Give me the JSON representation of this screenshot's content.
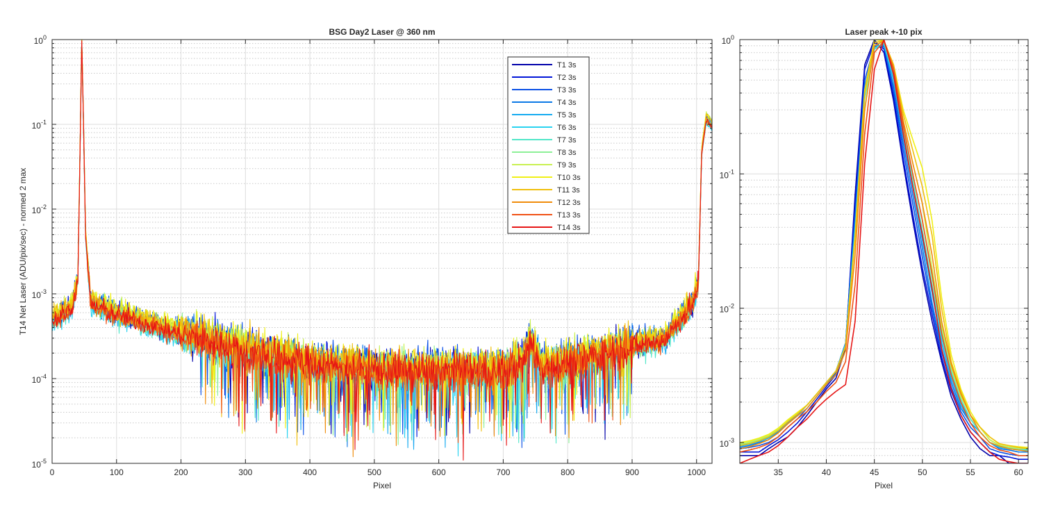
{
  "chart_data": [
    {
      "type": "line",
      "title": "BSG  Day2 Laser @ 360 nm",
      "xlabel": "Pixel",
      "ylabel": "T14 Net Laser (ADU/pix/sec) - normed 2 max",
      "xlim": [
        0,
        1024
      ],
      "ylim": [
        1e-05,
        1
      ],
      "yscale": "log",
      "grid": true,
      "minor_grid": true,
      "legend_position": "top-right (inside)",
      "x_ticks": [
        "0",
        "100",
        "200",
        "300",
        "400",
        "500",
        "600",
        "700",
        "800",
        "900",
        "1000"
      ],
      "y_ticks": [
        {
          "base": "10",
          "exp": "-5"
        },
        {
          "base": "10",
          "exp": "-4"
        },
        {
          "base": "10",
          "exp": "-3"
        },
        {
          "base": "10",
          "exp": "-2"
        },
        {
          "base": "10",
          "exp": "-1"
        },
        {
          "base": "10",
          "exp": "0"
        }
      ],
      "series_names": [
        "T1 3s",
        "T2 3s",
        "T3 3s",
        "T4 3s",
        "T5 3s",
        "T6 3s",
        "T7 3s",
        "T8 3s",
        "T9 3s",
        "T10 3s",
        "T11 3s",
        "T12 3s",
        "T13 3s",
        "T14 3s"
      ],
      "series_colors": [
        "#0000AA",
        "#0014D8",
        "#0A50E6",
        "#0A78E6",
        "#14AAF0",
        "#28D2F0",
        "#50E6C8",
        "#8CF096",
        "#C8F050",
        "#F0F014",
        "#F0BE0A",
        "#F08C0A",
        "#F05014",
        "#E61414"
      ],
      "profile": {
        "anchors_x": [
          0,
          30,
          40,
          44,
          46,
          48,
          52,
          60,
          100,
          200,
          300,
          400,
          500,
          600,
          700,
          730,
          742,
          760,
          800,
          900,
          950,
          995,
          1003,
          1008,
          1015,
          1024
        ],
        "anchors_y": [
          0.0005,
          0.0007,
          0.0015,
          0.1,
          1.0,
          0.2,
          0.005,
          0.0008,
          0.0006,
          0.00035,
          0.00022,
          0.00016,
          0.00013,
          0.00013,
          0.00013,
          0.00016,
          0.00028,
          0.00014,
          0.00016,
          0.00025,
          0.0003,
          0.0008,
          0.0015,
          0.05,
          0.12,
          0.1
        ]
      }
    },
    {
      "type": "line",
      "title": "Laser peak +-10 pix",
      "xlabel": "Pixel",
      "xlim": [
        31,
        61
      ],
      "ylim": [
        0.0007,
        1
      ],
      "yscale": "log",
      "grid": true,
      "minor_grid": true,
      "x_ticks": [
        "35",
        "40",
        "45",
        "50",
        "55",
        "60"
      ],
      "y_ticks": [
        {
          "base": "10",
          "exp": "-3"
        },
        {
          "base": "10",
          "exp": "-2"
        },
        {
          "base": "10",
          "exp": "-1"
        },
        {
          "base": "10",
          "exp": "0"
        }
      ],
      "x": [
        31,
        32,
        33,
        34,
        35,
        36,
        37,
        38,
        39,
        40,
        41,
        42,
        43,
        44,
        45,
        46,
        47,
        48,
        49,
        50,
        51,
        52,
        53,
        54,
        55,
        56,
        57,
        58,
        59,
        60,
        61
      ],
      "series": [
        {
          "values": [
            0.0008,
            0.0008,
            0.0008,
            0.0009,
            0.001,
            0.0011,
            0.0013,
            0.0016,
            0.002,
            0.0025,
            0.003,
            0.005,
            0.07,
            0.65,
            1.0,
            0.8,
            0.35,
            0.12,
            0.045,
            0.018,
            0.008,
            0.004,
            0.0022,
            0.0015,
            0.0011,
            0.0009,
            0.0008,
            0.0008,
            0.0007,
            0.0007,
            0.0007
          ]
        },
        {
          "values": [
            0.00085,
            0.00085,
            0.00085,
            0.00095,
            0.00105,
            0.0012,
            0.0014,
            0.0017,
            0.0021,
            0.0026,
            0.0032,
            0.0053,
            0.06,
            0.6,
            0.95,
            0.85,
            0.38,
            0.13,
            0.05,
            0.02,
            0.009,
            0.0043,
            0.0024,
            0.0016,
            0.0012,
            0.001,
            0.00085,
            0.0008,
            0.00078,
            0.00075,
            0.00075
          ]
        },
        {
          "values": [
            0.0009,
            0.00092,
            0.00095,
            0.001,
            0.0011,
            0.0013,
            0.0015,
            0.0018,
            0.0022,
            0.0027,
            0.0033,
            0.0055,
            0.05,
            0.5,
            0.9,
            0.88,
            0.42,
            0.15,
            0.06,
            0.024,
            0.01,
            0.0047,
            0.0026,
            0.0017,
            0.0013,
            0.0011,
            0.0009,
            0.00085,
            0.00082,
            0.0008,
            0.0008
          ]
        },
        {
          "values": [
            0.00092,
            0.00095,
            0.001,
            0.00105,
            0.0012,
            0.0014,
            0.0016,
            0.0019,
            0.0023,
            0.0028,
            0.0034,
            0.0055,
            0.045,
            0.45,
            0.88,
            0.9,
            0.45,
            0.17,
            0.07,
            0.028,
            0.011,
            0.005,
            0.0028,
            0.0018,
            0.0014,
            0.0012,
            0.001,
            0.0009,
            0.00088,
            0.00085,
            0.00085
          ]
        },
        {
          "values": [
            0.00094,
            0.00097,
            0.00102,
            0.00108,
            0.00122,
            0.00142,
            0.00162,
            0.0019,
            0.0023,
            0.0028,
            0.0034,
            0.0054,
            0.04,
            0.4,
            0.85,
            0.92,
            0.5,
            0.19,
            0.08,
            0.032,
            0.013,
            0.0055,
            0.003,
            0.0019,
            0.0014,
            0.0012,
            0.001,
            0.00092,
            0.0009,
            0.00088,
            0.00088
          ]
        },
        {
          "values": [
            0.00095,
            0.00098,
            0.00103,
            0.0011,
            0.00123,
            0.00143,
            0.00163,
            0.0019,
            0.0023,
            0.0028,
            0.0034,
            0.0053,
            0.038,
            0.38,
            0.85,
            0.94,
            0.52,
            0.2,
            0.085,
            0.035,
            0.014,
            0.006,
            0.0032,
            0.002,
            0.0015,
            0.0012,
            0.001,
            0.00093,
            0.0009,
            0.00088,
            0.00088
          ]
        },
        {
          "values": [
            0.00096,
            0.00099,
            0.00104,
            0.0011,
            0.00124,
            0.00144,
            0.00164,
            0.0019,
            0.0023,
            0.0028,
            0.0034,
            0.0052,
            0.035,
            0.36,
            0.86,
            0.95,
            0.55,
            0.21,
            0.09,
            0.038,
            0.015,
            0.0065,
            0.0034,
            0.0021,
            0.0015,
            0.0012,
            0.001,
            0.00094,
            0.00091,
            0.00089,
            0.00089
          ]
        },
        {
          "values": [
            0.00097,
            0.001,
            0.00105,
            0.00112,
            0.00125,
            0.00145,
            0.00165,
            0.0019,
            0.0023,
            0.0028,
            0.0034,
            0.0052,
            0.035,
            0.38,
            0.9,
            0.97,
            0.58,
            0.22,
            0.1,
            0.045,
            0.017,
            0.007,
            0.0036,
            0.0022,
            0.0016,
            0.0013,
            0.00105,
            0.00095,
            0.00092,
            0.0009,
            0.0009
          ]
        },
        {
          "values": [
            0.00098,
            0.00101,
            0.00106,
            0.00113,
            0.00126,
            0.00146,
            0.00166,
            0.0019,
            0.0023,
            0.0028,
            0.0034,
            0.0052,
            0.035,
            0.4,
            0.95,
            0.98,
            0.62,
            0.25,
            0.12,
            0.06,
            0.02,
            0.0075,
            0.0037,
            0.0022,
            0.0016,
            0.0013,
            0.00105,
            0.00096,
            0.00093,
            0.00091,
            0.0009
          ]
        },
        {
          "values": [
            0.001,
            0.00103,
            0.00108,
            0.00115,
            0.00128,
            0.00148,
            0.00168,
            0.0019,
            0.0023,
            0.0028,
            0.0034,
            0.0052,
            0.035,
            0.42,
            1.0,
            0.98,
            0.65,
            0.3,
            0.18,
            0.11,
            0.045,
            0.012,
            0.0045,
            0.0025,
            0.0017,
            0.0013,
            0.0011,
            0.00098,
            0.00095,
            0.00093,
            0.00092
          ]
        },
        {
          "values": [
            0.00095,
            0.00098,
            0.00103,
            0.0011,
            0.00123,
            0.00143,
            0.00163,
            0.0019,
            0.0023,
            0.0028,
            0.0034,
            0.0052,
            0.033,
            0.4,
            0.95,
            0.98,
            0.65,
            0.28,
            0.15,
            0.08,
            0.035,
            0.01,
            0.004,
            0.0024,
            0.0016,
            0.0013,
            0.0011,
            0.00098,
            0.00095,
            0.00092,
            0.0009
          ]
        },
        {
          "values": [
            0.0009,
            0.00093,
            0.00098,
            0.00105,
            0.00118,
            0.00138,
            0.00158,
            0.0018,
            0.0022,
            0.0027,
            0.0032,
            0.0048,
            0.025,
            0.3,
            0.9,
            0.98,
            0.62,
            0.25,
            0.12,
            0.06,
            0.025,
            0.008,
            0.0038,
            0.0023,
            0.0016,
            0.0012,
            0.001,
            0.00094,
            0.0009,
            0.00088,
            0.00086
          ]
        },
        {
          "values": [
            0.00085,
            0.00088,
            0.00092,
            0.00098,
            0.0011,
            0.0013,
            0.0015,
            0.0017,
            0.002,
            0.0024,
            0.0028,
            0.004,
            0.015,
            0.2,
            0.8,
            0.98,
            0.6,
            0.23,
            0.1,
            0.045,
            0.018,
            0.0065,
            0.0032,
            0.002,
            0.0014,
            0.0011,
            0.00095,
            0.00088,
            0.00085,
            0.0008,
            0.0008
          ]
        },
        {
          "values": [
            0.0007,
            0.00075,
            0.0008,
            0.00085,
            0.00095,
            0.0011,
            0.0013,
            0.0015,
            0.0018,
            0.0021,
            0.0024,
            0.0027,
            0.008,
            0.12,
            0.6,
            1.0,
            0.55,
            0.2,
            0.08,
            0.035,
            0.014,
            0.005,
            0.0025,
            0.0016,
            0.0012,
            0.001,
            0.00085,
            0.00075,
            0.00072,
            0.0007,
            0.0007
          ]
        }
      ]
    }
  ]
}
